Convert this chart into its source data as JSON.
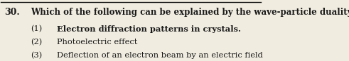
{
  "question_number": "30.",
  "question_text": "Which of the following can be explained by the wave-particle duality?",
  "items": [
    {
      "num": "(1)",
      "text": "Electron diffraction patterns in crystals.",
      "bold": true
    },
    {
      "num": "(2)",
      "text": "Photoelectric effect",
      "bold": false
    },
    {
      "num": "(3)",
      "text": "Deflection of an electron beam by an electric field",
      "bold": false
    }
  ],
  "background_color": "#f0ece0",
  "text_color": "#1a1a1a",
  "line_color": "#1a1a1a",
  "question_fontsize": 8.5,
  "item_fontsize": 8.2,
  "q_num_fontsize": 9.0,
  "font_family": "serif"
}
